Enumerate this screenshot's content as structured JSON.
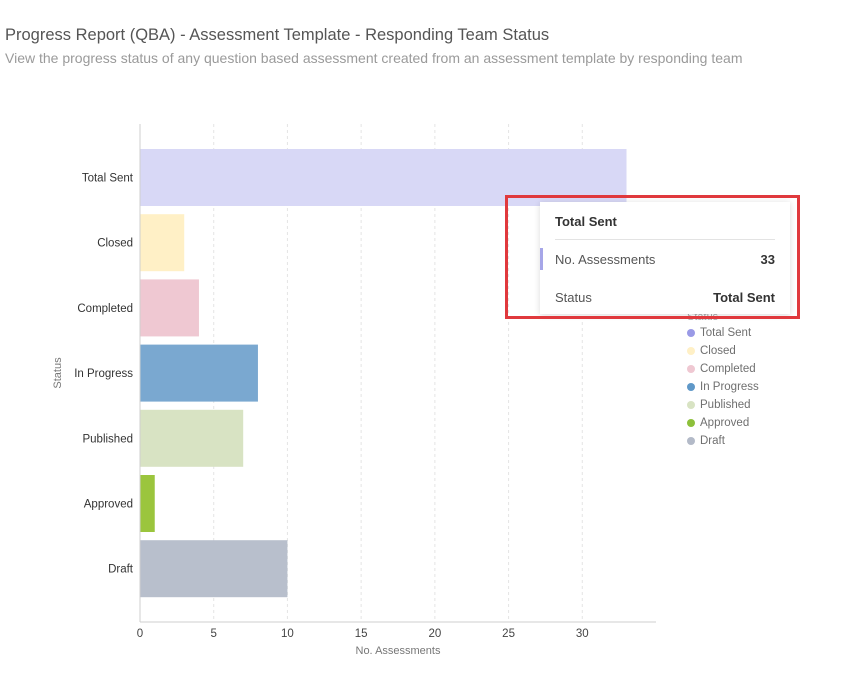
{
  "header": {
    "title": "Progress Report (QBA) - Assessment Template - Responding Team Status",
    "subtitle": "View the progress status of any question based assessment created from an assessment template by responding team"
  },
  "chart_data": {
    "type": "bar",
    "orientation": "horizontal",
    "categories": [
      "Total Sent",
      "Closed",
      "Completed",
      "In Progress",
      "Published",
      "Approved",
      "Draft"
    ],
    "values": [
      33,
      3,
      4,
      8,
      7,
      1,
      10
    ],
    "colors": [
      "#d8d8f6",
      "#fff0c6",
      "#efc8d2",
      "#7aa8d0",
      "#d8e3c3",
      "#9bc53d",
      "#b8bfcc"
    ],
    "xlabel": "No. Assessments",
    "ylabel": "Status",
    "xlim": [
      0,
      35
    ],
    "xticks": [
      0,
      5,
      10,
      15,
      20,
      25,
      30
    ],
    "grid": true,
    "legend": {
      "title": "Status",
      "placement": "right",
      "items": [
        "Total Sent",
        "Closed",
        "Completed",
        "In Progress",
        "Published",
        "Approved",
        "Draft"
      ],
      "colors": [
        "#9a9ae6",
        "#fff0c6",
        "#efc8d2",
        "#5f98c8",
        "#d8e3c3",
        "#8dc03b",
        "#b3bac8"
      ]
    }
  },
  "tooltip": {
    "title": "Total Sent",
    "rows": [
      {
        "label": "No. Assessments",
        "value": "33"
      },
      {
        "label": "Status",
        "value": "Total Sent"
      }
    ]
  }
}
